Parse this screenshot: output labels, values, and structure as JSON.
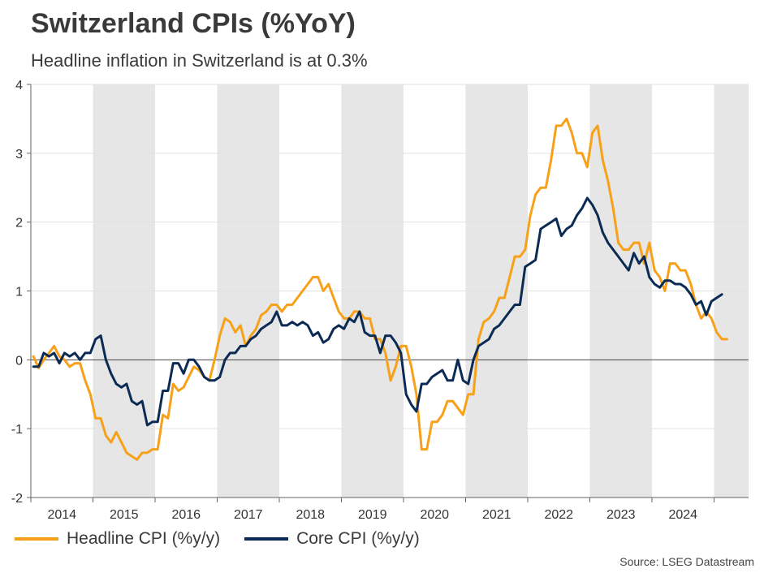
{
  "title": "Switzerland CPIs (%YoY)",
  "subtitle": "Headline inflation in Switzerland is at 0.3%",
  "source": "Source: LSEG Datastream",
  "colors": {
    "headline": "#f7a11a",
    "core": "#0c2b54",
    "band": "#e6e6e6",
    "grid": "#e2e2e2",
    "axis": "#666666"
  },
  "chart_data": {
    "type": "line",
    "title": "Switzerland CPIs (%YoY)",
    "xlabel": "",
    "ylabel": "",
    "ylim": [
      -2,
      4
    ],
    "yticks": [
      "4",
      "3",
      "2",
      "1",
      "0",
      "-1",
      "-2"
    ],
    "year_labels": [
      "2014",
      "2015",
      "2016",
      "2017",
      "2018",
      "2019",
      "2020",
      "2021",
      "2022",
      "2023",
      "2024"
    ],
    "shaded_years": [
      "2015",
      "2017",
      "2019",
      "2021",
      "2023"
    ],
    "grid": true,
    "legend_position": "bottom-left",
    "x_start": "2014-01",
    "series": [
      {
        "name": "Headline CPI (%y/y)",
        "color": "#f7a11a",
        "values": [
          0.05,
          -0.12,
          0.0,
          0.1,
          0.2,
          0.05,
          0.0,
          -0.1,
          -0.05,
          -0.05,
          -0.3,
          -0.5,
          -0.85,
          -0.85,
          -1.1,
          -1.2,
          -1.05,
          -1.2,
          -1.35,
          -1.4,
          -1.45,
          -1.35,
          -1.35,
          -1.3,
          -1.3,
          -0.8,
          -0.85,
          -0.35,
          -0.45,
          -0.4,
          -0.25,
          -0.1,
          -0.15,
          -0.25,
          -0.3,
          0.0,
          0.35,
          0.6,
          0.55,
          0.4,
          0.5,
          0.2,
          0.35,
          0.45,
          0.65,
          0.7,
          0.8,
          0.8,
          0.7,
          0.8,
          0.8,
          0.9,
          1.0,
          1.1,
          1.2,
          1.2,
          1.0,
          1.1,
          0.9,
          0.7,
          0.6,
          0.6,
          0.7,
          0.7,
          0.6,
          0.6,
          0.3,
          0.3,
          0.1,
          -0.3,
          -0.1,
          0.2,
          0.2,
          -0.1,
          -0.5,
          -1.3,
          -1.3,
          -0.9,
          -0.9,
          -0.8,
          -0.6,
          -0.6,
          -0.7,
          -0.8,
          -0.5,
          -0.5,
          0.3,
          0.55,
          0.6,
          0.7,
          0.9,
          0.9,
          1.2,
          1.5,
          1.5,
          1.6,
          2.1,
          2.4,
          2.5,
          2.5,
          2.9,
          3.4,
          3.4,
          3.5,
          3.3,
          3.0,
          3.0,
          2.8,
          3.3,
          3.4,
          2.9,
          2.6,
          2.2,
          1.7,
          1.6,
          1.6,
          1.7,
          1.7,
          1.4,
          1.7,
          1.3,
          1.2,
          1.0,
          1.4,
          1.4,
          1.3,
          1.3,
          1.1,
          0.8,
          0.6,
          0.7,
          0.6,
          0.4,
          0.3,
          0.3
        ]
      },
      {
        "name": "Core CPI (%y/y)",
        "color": "#0c2b54",
        "values": [
          -0.1,
          -0.1,
          0.1,
          0.05,
          0.1,
          -0.05,
          0.1,
          0.05,
          0.1,
          0.0,
          0.1,
          0.1,
          0.3,
          0.35,
          0.0,
          -0.2,
          -0.35,
          -0.4,
          -0.35,
          -0.6,
          -0.65,
          -0.6,
          -0.95,
          -0.9,
          -0.9,
          -0.45,
          -0.45,
          -0.05,
          -0.05,
          -0.2,
          0.0,
          0.0,
          -0.1,
          -0.25,
          -0.3,
          -0.3,
          -0.25,
          0.0,
          0.1,
          0.1,
          0.2,
          0.2,
          0.3,
          0.35,
          0.45,
          0.5,
          0.55,
          0.7,
          0.5,
          0.5,
          0.55,
          0.5,
          0.55,
          0.5,
          0.35,
          0.4,
          0.25,
          0.3,
          0.45,
          0.5,
          0.45,
          0.6,
          0.55,
          0.7,
          0.4,
          0.35,
          0.35,
          0.1,
          0.35,
          0.35,
          0.25,
          0.1,
          -0.5,
          -0.65,
          -0.75,
          -0.35,
          -0.35,
          -0.25,
          -0.2,
          -0.15,
          -0.3,
          -0.3,
          0.0,
          -0.3,
          -0.35,
          0.0,
          0.2,
          0.25,
          0.3,
          0.45,
          0.5,
          0.6,
          0.7,
          0.8,
          0.8,
          1.35,
          1.4,
          1.45,
          1.9,
          1.95,
          2.0,
          2.05,
          1.8,
          1.9,
          1.95,
          2.1,
          2.2,
          2.35,
          2.25,
          2.1,
          1.85,
          1.7,
          1.6,
          1.5,
          1.4,
          1.3,
          1.55,
          1.4,
          1.5,
          1.2,
          1.1,
          1.05,
          1.15,
          1.15,
          1.1,
          1.1,
          1.05,
          0.95,
          0.8,
          0.85,
          0.65,
          0.85,
          0.9,
          0.95
        ]
      }
    ]
  }
}
